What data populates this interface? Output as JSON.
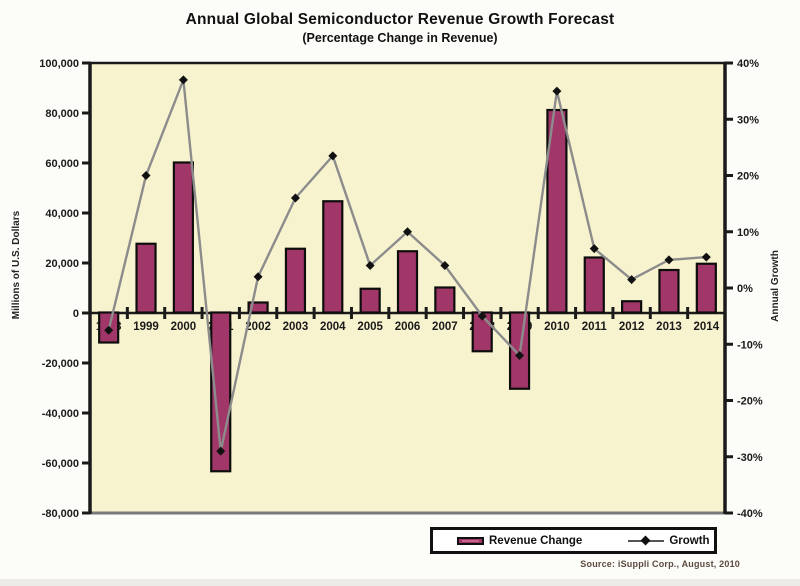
{
  "title": "Annual Global Semiconductor Revenue Growth Forecast",
  "subtitle": "(Percentage Change in Revenue)",
  "source": "Source: iSuppli Corp., August, 2010",
  "legend": {
    "bar_label": "Revenue Change",
    "line_label": "Growth"
  },
  "colors": {
    "bar_fill": "#a13768",
    "bar_stroke": "#0d0d0d",
    "line": "#8c8c8c",
    "marker": "#111111",
    "plot_bg": "#f8f3cf",
    "axis": "#1a1a1a",
    "bottom_border": "#7a7a7a",
    "tick_text": "#1a1a1a"
  },
  "chart_data": {
    "type": "bar",
    "subtype": "bar+line combo, dual y-axes",
    "title": "Annual Global Semiconductor Revenue Growth Forecast (Percentage Change in Revenue)",
    "categories": [
      "1998",
      "1999",
      "2000",
      "2001",
      "2002",
      "2003",
      "2004",
      "2005",
      "2006",
      "2007",
      "2008",
      "2009",
      "2010",
      "2011",
      "2012",
      "2013",
      "2014"
    ],
    "series": [
      {
        "name": "Revenue Change",
        "type": "bar",
        "axis": "left",
        "unit": "millions of U.S. dollars",
        "values": [
          -12000,
          27500,
          60000,
          -63500,
          4000,
          25500,
          44500,
          9500,
          24500,
          10000,
          -15500,
          -30500,
          81000,
          22000,
          4500,
          17000,
          19500
        ]
      },
      {
        "name": "Growth",
        "type": "line",
        "axis": "right",
        "unit": "percent",
        "values": [
          -7.5,
          20,
          37,
          -29,
          2,
          16,
          23.5,
          4,
          10,
          4,
          -5,
          -12,
          35,
          7,
          1.5,
          5,
          5.5
        ]
      }
    ],
    "left_axis": {
      "label": "Millions of U.S. Dollars",
      "min": -80000,
      "max": 100000,
      "tick_step": 20000,
      "tick_labels": [
        "100,000",
        "80,000",
        "60,000",
        "40,000",
        "20,000",
        "0",
        "-20,000",
        "-40,000",
        "-60,000",
        "-80,000"
      ]
    },
    "right_axis": {
      "label": "Annual Growth",
      "min": -40,
      "max": 40,
      "tick_step": 10,
      "tick_labels": [
        "40%",
        "30%",
        "20%",
        "10%",
        "0%",
        "-10%",
        "-20%",
        "-30%",
        "-40%"
      ]
    },
    "grid": false,
    "legend_position": "bottom"
  }
}
